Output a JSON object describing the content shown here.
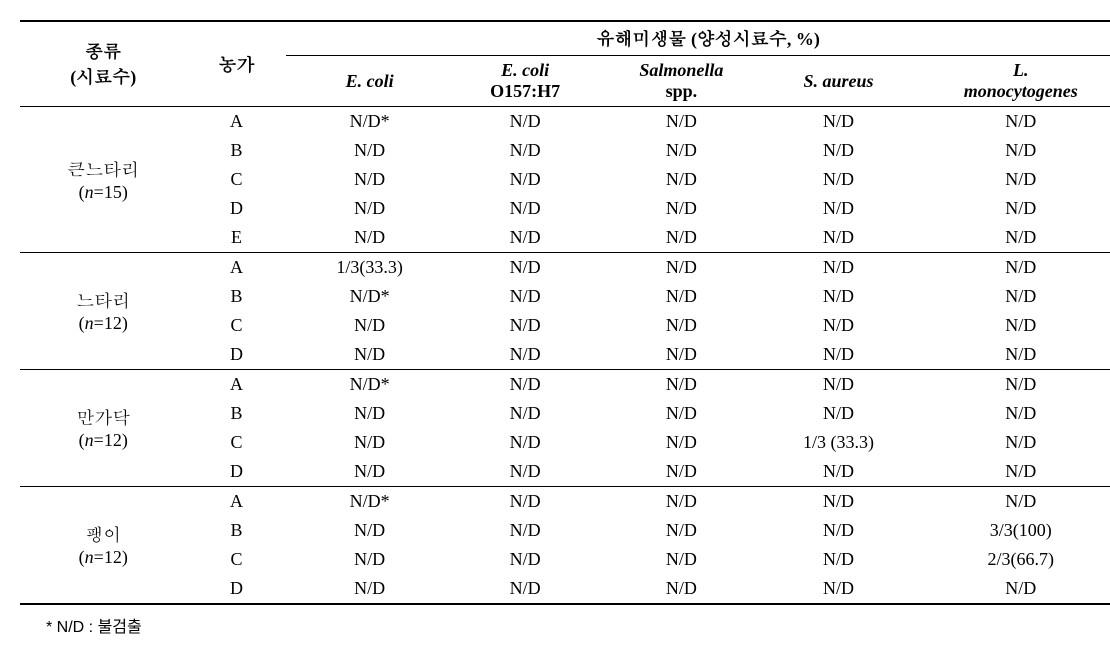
{
  "headers": {
    "species": "종류",
    "species_sub": "(시료수)",
    "farm": "농가",
    "pathogen_group": "유해미생물 (양성시료수, %)",
    "ecoli": "E. coli",
    "ecoli_o157": "E. coli",
    "ecoli_o157_sub": "O157:H7",
    "salmonella": "Salmonella",
    "salmonella_sub": "spp.",
    "saureus": "S. aureus",
    "lmono": "L.",
    "lmono_sub": "monocytogenes"
  },
  "groups": [
    {
      "name": "큰느타리",
      "n_label": "(n=15)",
      "rows": [
        {
          "farm": "A",
          "ecoli": "N/D*",
          "o157": "N/D",
          "sal": "N/D",
          "sau": "N/D",
          "lmono": "N/D"
        },
        {
          "farm": "B",
          "ecoli": "N/D",
          "o157": "N/D",
          "sal": "N/D",
          "sau": "N/D",
          "lmono": "N/D"
        },
        {
          "farm": "C",
          "ecoli": "N/D",
          "o157": "N/D",
          "sal": "N/D",
          "sau": "N/D",
          "lmono": "N/D"
        },
        {
          "farm": "D",
          "ecoli": "N/D",
          "o157": "N/D",
          "sal": "N/D",
          "sau": "N/D",
          "lmono": "N/D"
        },
        {
          "farm": "E",
          "ecoli": "N/D",
          "o157": "N/D",
          "sal": "N/D",
          "sau": "N/D",
          "lmono": "N/D"
        }
      ]
    },
    {
      "name": "느타리",
      "n_label": "(n=12)",
      "rows": [
        {
          "farm": "A",
          "ecoli": "1/3(33.3)",
          "o157": "N/D",
          "sal": "N/D",
          "sau": "N/D",
          "lmono": "N/D"
        },
        {
          "farm": "B",
          "ecoli": "N/D*",
          "o157": "N/D",
          "sal": "N/D",
          "sau": "N/D",
          "lmono": "N/D"
        },
        {
          "farm": "C",
          "ecoli": "N/D",
          "o157": "N/D",
          "sal": "N/D",
          "sau": "N/D",
          "lmono": "N/D"
        },
        {
          "farm": "D",
          "ecoli": "N/D",
          "o157": "N/D",
          "sal": "N/D",
          "sau": "N/D",
          "lmono": "N/D"
        }
      ]
    },
    {
      "name": "만가닥",
      "n_label": "(n=12)",
      "rows": [
        {
          "farm": "A",
          "ecoli": "N/D*",
          "o157": "N/D",
          "sal": "N/D",
          "sau": "N/D",
          "lmono": "N/D"
        },
        {
          "farm": "B",
          "ecoli": "N/D",
          "o157": "N/D",
          "sal": "N/D",
          "sau": "N/D",
          "lmono": "N/D"
        },
        {
          "farm": "C",
          "ecoli": "N/D",
          "o157": "N/D",
          "sal": "N/D",
          "sau": "1/3 (33.3)",
          "lmono": "N/D"
        },
        {
          "farm": "D",
          "ecoli": "N/D",
          "o157": "N/D",
          "sal": "N/D",
          "sau": "N/D",
          "lmono": "N/D"
        }
      ]
    },
    {
      "name": "팽이",
      "n_label": "(n=12)",
      "rows": [
        {
          "farm": "A",
          "ecoli": "N/D*",
          "o157": "N/D",
          "sal": "N/D",
          "sau": "N/D",
          "lmono": "N/D"
        },
        {
          "farm": "B",
          "ecoli": "N/D",
          "o157": "N/D",
          "sal": "N/D",
          "sau": "N/D",
          "lmono": "3/3(100)"
        },
        {
          "farm": "C",
          "ecoli": "N/D",
          "o157": "N/D",
          "sal": "N/D",
          "sau": "N/D",
          "lmono": "2/3(66.7)"
        },
        {
          "farm": "D",
          "ecoli": "N/D",
          "o157": "N/D",
          "sal": "N/D",
          "sau": "N/D",
          "lmono": "N/D"
        }
      ]
    }
  ],
  "footnote": "* N/D : 불검출"
}
